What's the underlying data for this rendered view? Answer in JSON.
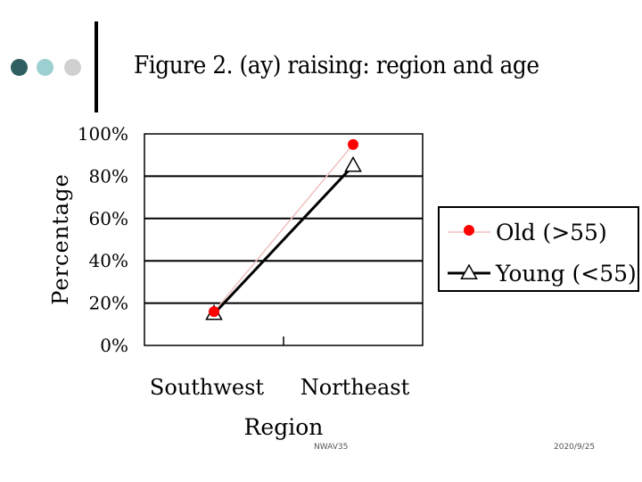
{
  "slide": {
    "title": "Figure 2. (ay) raising: region and age",
    "footer_left": "NWAV35",
    "footer_right": "2020/9/25",
    "bullet_colors": [
      "#2f5f60",
      "#9ccfd0",
      "#d0d0d0"
    ]
  },
  "chart_data": {
    "type": "line",
    "categories": [
      "Southwest",
      "Northeast"
    ],
    "xlabel": "Region",
    "ylabel": "Percentage",
    "ylim": [
      0,
      100
    ],
    "yticks": [
      "0%",
      "20%",
      "40%",
      "60%",
      "80%",
      "100%"
    ],
    "grid": true,
    "legend_position": "right",
    "series": [
      {
        "name": "Old (>55)",
        "values": [
          16,
          95
        ],
        "color": "#ff0000",
        "line_color": "#f0c0c0",
        "marker": "circle"
      },
      {
        "name": "Young (<55)",
        "values": [
          15,
          85
        ],
        "color": "#000000",
        "line_color": "#000000",
        "marker": "triangle"
      }
    ]
  }
}
